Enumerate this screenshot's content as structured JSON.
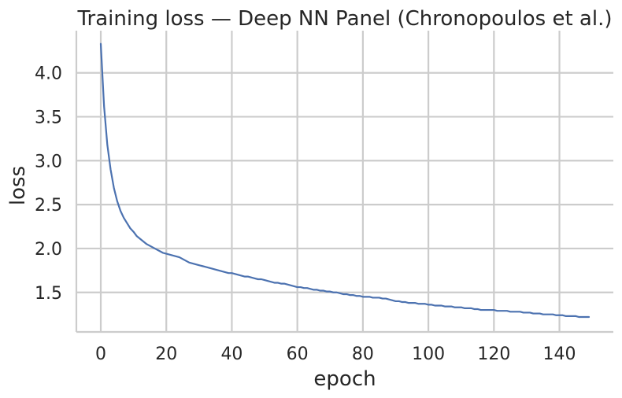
{
  "chart_data": {
    "type": "line",
    "title": "Training loss — Deep NN Panel (Chronopoulos et al.)",
    "xlabel": "epoch",
    "ylabel": "loss",
    "xlim": [
      -7.45,
      156.45
    ],
    "ylim": [
      1.05,
      4.48
    ],
    "xticks": [
      0,
      20,
      40,
      60,
      80,
      100,
      120,
      140
    ],
    "xtick_labels": [
      "0",
      "20",
      "40",
      "60",
      "80",
      "100",
      "120",
      "140"
    ],
    "yticks": [
      1.5,
      2.0,
      2.5,
      3.0,
      3.5,
      4.0
    ],
    "ytick_labels": [
      "1.5",
      "2.0",
      "2.5",
      "3.0",
      "3.5",
      "4.0"
    ],
    "grid": true,
    "legend": false,
    "series": [
      {
        "color": "#4c72b0",
        "x": [
          0,
          1,
          2,
          3,
          4,
          5,
          6,
          7,
          8,
          9,
          10,
          11,
          12,
          13,
          14,
          15,
          16,
          17,
          18,
          19,
          20,
          21,
          22,
          23,
          24,
          25,
          26,
          27,
          28,
          29,
          30,
          31,
          32,
          33,
          34,
          35,
          36,
          37,
          38,
          39,
          40,
          41,
          42,
          43,
          44,
          45,
          46,
          47,
          48,
          49,
          50,
          51,
          52,
          53,
          54,
          55,
          56,
          57,
          58,
          59,
          60,
          61,
          62,
          63,
          64,
          65,
          66,
          67,
          68,
          69,
          70,
          71,
          72,
          73,
          74,
          75,
          76,
          77,
          78,
          79,
          80,
          81,
          82,
          83,
          84,
          85,
          86,
          87,
          88,
          89,
          90,
          91,
          92,
          93,
          94,
          95,
          96,
          97,
          98,
          99,
          100,
          101,
          102,
          103,
          104,
          105,
          106,
          107,
          108,
          109,
          110,
          111,
          112,
          113,
          114,
          115,
          116,
          117,
          118,
          119,
          120,
          121,
          122,
          123,
          124,
          125,
          126,
          127,
          128,
          129,
          130,
          131,
          132,
          133,
          134,
          135,
          136,
          137,
          138,
          139,
          140,
          141,
          142,
          143,
          144,
          145,
          146,
          147,
          148,
          149
        ],
        "values": [
          4.33,
          3.62,
          3.18,
          2.9,
          2.69,
          2.54,
          2.43,
          2.35,
          2.29,
          2.23,
          2.19,
          2.14,
          2.11,
          2.08,
          2.05,
          2.03,
          2.01,
          1.99,
          1.97,
          1.95,
          1.94,
          1.93,
          1.92,
          1.91,
          1.9,
          1.88,
          1.86,
          1.84,
          1.83,
          1.82,
          1.81,
          1.8,
          1.79,
          1.78,
          1.77,
          1.76,
          1.75,
          1.74,
          1.73,
          1.72,
          1.72,
          1.71,
          1.7,
          1.69,
          1.68,
          1.68,
          1.67,
          1.66,
          1.65,
          1.65,
          1.64,
          1.63,
          1.62,
          1.61,
          1.61,
          1.6,
          1.6,
          1.59,
          1.58,
          1.57,
          1.56,
          1.56,
          1.55,
          1.55,
          1.54,
          1.53,
          1.53,
          1.52,
          1.52,
          1.51,
          1.51,
          1.5,
          1.5,
          1.49,
          1.48,
          1.48,
          1.47,
          1.47,
          1.46,
          1.46,
          1.45,
          1.45,
          1.45,
          1.44,
          1.44,
          1.44,
          1.43,
          1.43,
          1.42,
          1.41,
          1.4,
          1.4,
          1.39,
          1.39,
          1.38,
          1.38,
          1.38,
          1.37,
          1.37,
          1.37,
          1.36,
          1.36,
          1.35,
          1.35,
          1.35,
          1.34,
          1.34,
          1.34,
          1.33,
          1.33,
          1.33,
          1.32,
          1.32,
          1.32,
          1.31,
          1.31,
          1.3,
          1.3,
          1.3,
          1.3,
          1.3,
          1.29,
          1.29,
          1.29,
          1.29,
          1.28,
          1.28,
          1.28,
          1.28,
          1.27,
          1.27,
          1.27,
          1.26,
          1.26,
          1.26,
          1.25,
          1.25,
          1.25,
          1.25,
          1.24,
          1.24,
          1.24,
          1.23,
          1.23,
          1.23,
          1.23,
          1.22,
          1.22,
          1.22,
          1.22
        ]
      }
    ]
  }
}
